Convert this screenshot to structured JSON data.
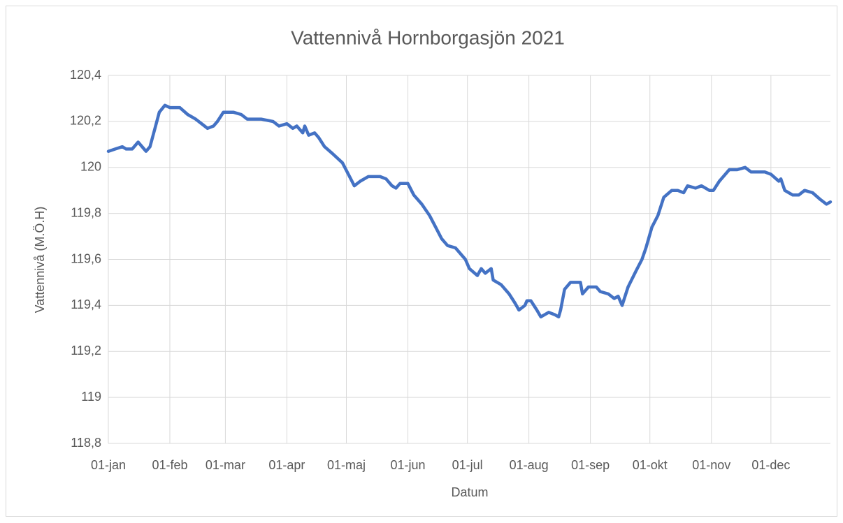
{
  "chart_data": {
    "type": "line",
    "title": "Vattennivå Hornborgasjön 2021",
    "xlabel": "Datum",
    "ylabel": "Vattennivå (M.Ö.H)",
    "x": [
      0,
      3.5,
      7,
      9,
      12,
      15,
      18,
      19,
      21,
      23.5,
      25.7,
      28.5,
      31,
      36,
      40,
      44,
      47,
      50,
      53,
      55,
      58,
      63,
      67,
      70,
      77,
      83,
      86,
      90,
      93,
      95,
      98,
      99,
      101,
      104,
      106,
      109,
      113,
      118,
      121,
      124,
      127,
      131,
      137,
      140,
      143,
      145,
      147,
      151,
      154,
      158,
      162,
      165,
      168,
      171,
      175,
      180,
      182,
      186,
      188,
      190,
      193,
      194,
      198,
      202,
      205,
      207,
      210,
      211,
      213,
      216,
      218,
      222,
      225,
      227,
      228,
      230,
      233,
      238,
      239,
      242,
      246,
      248,
      252,
      255,
      257,
      259,
      262,
      266,
      269,
      271,
      274,
      277,
      280,
      284,
      287,
      290,
      292,
      296,
      299,
      303,
      305,
      308,
      313,
      317,
      321,
      324,
      331,
      334,
      338,
      339,
      341,
      345,
      348,
      351,
      355,
      359,
      362,
      364
    ],
    "values": [
      120.07,
      120.08,
      120.09,
      120.08,
      120.08,
      120.11,
      120.08,
      120.07,
      120.09,
      120.17,
      120.24,
      120.27,
      120.26,
      120.26,
      120.23,
      120.21,
      120.19,
      120.17,
      120.18,
      120.2,
      120.24,
      120.24,
      120.23,
      120.21,
      120.21,
      120.2,
      120.18,
      120.19,
      120.17,
      120.18,
      120.15,
      120.18,
      120.14,
      120.15,
      120.13,
      120.09,
      120.06,
      120.02,
      119.97,
      119.92,
      119.94,
      119.96,
      119.96,
      119.95,
      119.92,
      119.91,
      119.93,
      119.93,
      119.88,
      119.84,
      119.79,
      119.74,
      119.69,
      119.66,
      119.65,
      119.6,
      119.56,
      119.53,
      119.56,
      119.54,
      119.56,
      119.51,
      119.49,
      119.45,
      119.41,
      119.38,
      119.4,
      119.42,
      119.42,
      119.38,
      119.35,
      119.37,
      119.36,
      119.35,
      119.38,
      119.47,
      119.5,
      119.5,
      119.45,
      119.48,
      119.48,
      119.46,
      119.45,
      119.43,
      119.44,
      119.4,
      119.48,
      119.55,
      119.6,
      119.65,
      119.74,
      119.79,
      119.87,
      119.9,
      119.9,
      119.89,
      119.92,
      119.91,
      119.92,
      119.9,
      119.9,
      119.94,
      119.99,
      119.99,
      120.0,
      119.98,
      119.98,
      119.97,
      119.94,
      119.95,
      119.9,
      119.88,
      119.88,
      119.9,
      119.89,
      119.86,
      119.84,
      119.85
    ],
    "color": "#4472c4",
    "xlim": [
      0,
      364
    ],
    "xticks": [
      {
        "value": 0,
        "label": "01-jan"
      },
      {
        "value": 31,
        "label": "01-feb"
      },
      {
        "value": 59,
        "label": "01-mar"
      },
      {
        "value": 90,
        "label": "01-apr"
      },
      {
        "value": 120,
        "label": "01-maj"
      },
      {
        "value": 151,
        "label": "01-jun"
      },
      {
        "value": 181,
        "label": "01-jul"
      },
      {
        "value": 212,
        "label": "01-aug"
      },
      {
        "value": 243,
        "label": "01-sep"
      },
      {
        "value": 273,
        "label": "01-okt"
      },
      {
        "value": 304,
        "label": "01-nov"
      },
      {
        "value": 334,
        "label": "01-dec"
      }
    ],
    "ylim": [
      118.8,
      120.4
    ],
    "yticks": [
      {
        "value": 118.8,
        "label": "118,8"
      },
      119,
      {
        "value": 119.2,
        "label": "119,2"
      },
      {
        "value": 119.4,
        "label": "119,4"
      },
      {
        "value": 119.6,
        "label": "119,6"
      },
      {
        "value": 119.8,
        "label": "119,8"
      },
      120,
      {
        "value": 120.2,
        "label": "120,2"
      },
      {
        "value": 120.4,
        "label": "120,4"
      }
    ],
    "grid": true
  }
}
